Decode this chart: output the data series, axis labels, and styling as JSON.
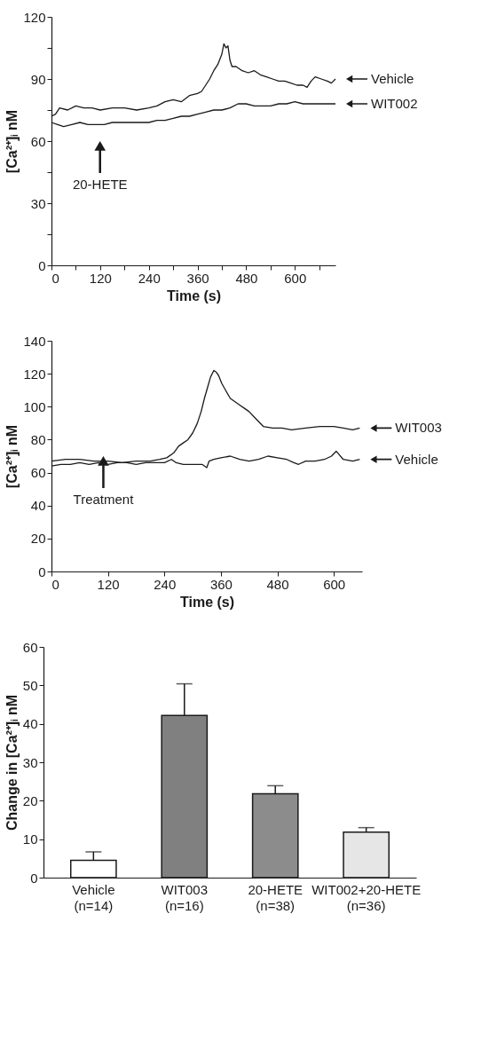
{
  "chart_data": [
    {
      "type": "line",
      "xlabel": "Time (s)",
      "ylabel": "[Ca²⁺]ᵢ nM",
      "xlim": [
        0,
        700
      ],
      "ylim": [
        0,
        120
      ],
      "xticks": [
        0,
        {
          "value": 60,
          "label": null
        },
        120,
        {
          "value": 180,
          "label": null
        },
        240,
        {
          "value": 300,
          "label": null
        },
        360,
        {
          "value": 420,
          "label": null
        },
        480,
        {
          "value": 540,
          "label": null
        },
        600,
        {
          "value": 660,
          "label": null
        }
      ],
      "yticks": [
        0,
        {
          "value": 15,
          "label": null
        },
        30,
        {
          "value": 45,
          "label": null
        },
        60,
        {
          "value": 75,
          "label": null
        },
        90,
        {
          "value": 105,
          "label": null
        },
        120
      ],
      "grid": false,
      "legend": "right",
      "line_style": "solid",
      "annotations": [
        "20-HETE"
      ],
      "series": [
        {
          "name": "Vehicle",
          "color": "#1a1a1a",
          "x": [
            0,
            10,
            20,
            40,
            60,
            80,
            100,
            120,
            150,
            180,
            210,
            240,
            260,
            280,
            300,
            320,
            340,
            360,
            370,
            380,
            390,
            400,
            410,
            420,
            425,
            430,
            435,
            440,
            445,
            455,
            470,
            485,
            500,
            515,
            530,
            545,
            560,
            575,
            590,
            605,
            620,
            630,
            640,
            650,
            665,
            680,
            690,
            700
          ],
          "values": [
            72,
            73,
            76,
            75,
            77,
            76,
            76,
            75,
            76,
            76,
            75,
            76,
            77,
            79,
            80,
            79,
            82,
            83,
            84,
            87,
            90,
            94,
            97,
            102,
            107,
            105,
            106,
            99,
            96,
            96,
            94,
            93,
            94,
            92,
            91,
            90,
            89,
            89,
            88,
            87,
            87,
            86,
            89,
            91,
            90,
            89,
            88,
            90
          ]
        },
        {
          "name": "WIT002",
          "color": "#1a1a1a",
          "x": [
            0,
            15,
            30,
            50,
            70,
            90,
            110,
            130,
            150,
            180,
            210,
            240,
            260,
            280,
            300,
            320,
            340,
            360,
            380,
            400,
            420,
            440,
            460,
            480,
            500,
            520,
            540,
            560,
            580,
            600,
            620,
            640,
            660,
            680,
            700
          ],
          "values": [
            69,
            68,
            67,
            68,
            69,
            68,
            68,
            68,
            69,
            69,
            69,
            69,
            70,
            70,
            71,
            72,
            72,
            73,
            74,
            75,
            75,
            76,
            78,
            78,
            77,
            77,
            77,
            78,
            78,
            79,
            78,
            78,
            78,
            78,
            78
          ]
        }
      ]
    },
    {
      "type": "line",
      "xlabel": "Time (s)",
      "ylabel": "[Ca²⁺]ᵢ nM",
      "xlim": [
        0,
        660
      ],
      "ylim": [
        0,
        140
      ],
      "xticks": [
        0,
        120,
        240,
        360,
        480,
        600
      ],
      "yticks": [
        0,
        20,
        40,
        60,
        80,
        100,
        120,
        140
      ],
      "grid": false,
      "legend": "right",
      "line_style": "solid",
      "annotations": [
        "Treatment"
      ],
      "series": [
        {
          "name": "WIT003",
          "color": "#1a1a1a",
          "x": [
            0,
            30,
            60,
            90,
            120,
            150,
            180,
            210,
            230,
            245,
            260,
            270,
            280,
            290,
            300,
            310,
            318,
            325,
            332,
            338,
            345,
            350,
            355,
            362,
            370,
            380,
            390,
            400,
            410,
            420,
            430,
            440,
            450,
            470,
            490,
            510,
            540,
            570,
            600,
            620,
            640,
            655
          ],
          "values": [
            67,
            68,
            68,
            67,
            67,
            66,
            67,
            67,
            68,
            69,
            72,
            76,
            78,
            80,
            84,
            90,
            97,
            105,
            112,
            118,
            122,
            121,
            119,
            114,
            110,
            105,
            103,
            101,
            99,
            97,
            94,
            91,
            88,
            87,
            87,
            86,
            87,
            88,
            88,
            87,
            86,
            87
          ]
        },
        {
          "name": "Vehicle",
          "color": "#1a1a1a",
          "x": [
            0,
            20,
            40,
            60,
            80,
            100,
            120,
            140,
            160,
            180,
            200,
            220,
            240,
            255,
            265,
            280,
            300,
            320,
            330,
            335,
            345,
            360,
            380,
            400,
            420,
            440,
            460,
            480,
            500,
            515,
            525,
            540,
            560,
            580,
            595,
            605,
            620,
            640,
            655
          ],
          "values": [
            64,
            65,
            65,
            66,
            65,
            66,
            65,
            66,
            66,
            65,
            66,
            66,
            66,
            68,
            66,
            65,
            65,
            65,
            63,
            67,
            68,
            69,
            70,
            68,
            67,
            68,
            70,
            69,
            68,
            66,
            65,
            67,
            67,
            68,
            70,
            73,
            68,
            67,
            68
          ]
        }
      ]
    },
    {
      "type": "bar",
      "ylabel": "Change in [Ca²⁺]ᵢ nM",
      "ylim": [
        0,
        60
      ],
      "yticks": [
        0,
        10,
        20,
        30,
        40,
        50,
        60
      ],
      "grid": false,
      "categories": [
        "Vehicle\n(n=14)",
        "WIT003\n(n=16)",
        "20-HETE\n(n=38)",
        "WIT002+20-HETE\n(n=36)"
      ],
      "values": [
        4.5,
        42.2,
        21.8,
        11.8
      ],
      "errors": [
        [
          4.5,
          6.7
        ],
        [
          42.2,
          50.4
        ],
        [
          21.8,
          23.9
        ],
        [
          11.8,
          13.0
        ]
      ],
      "colors": [
        "#ffffff",
        "#808080",
        "#8c8c8c",
        "#e6e6e6"
      ]
    }
  ]
}
